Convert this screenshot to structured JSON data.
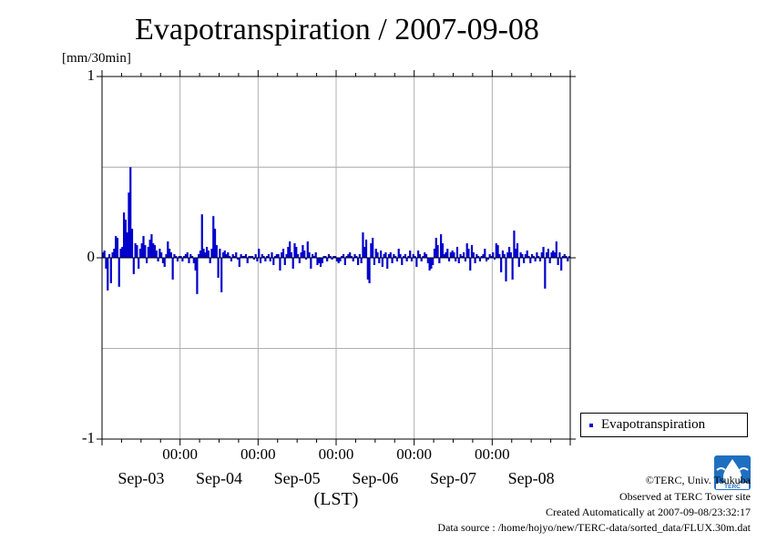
{
  "title": "Evapotranspiration / 2007-09-08",
  "unit_label": "[mm/30min]",
  "legend_label": "Evapotranspiration",
  "credits": {
    "copyright": "©TERC, Univ. Tsukuba",
    "observed": "Observed at TERC Tower site",
    "created": "Created Automatically at 2007-09-08/23:32:17",
    "source": "Data source : /home/hojyo/new/TERC-data/sorted_data/FLUX.30m.dat"
  },
  "logo_text": "TERC",
  "colors": {
    "series": "#0000cc",
    "grid": "#b0b0b0",
    "axis": "#000000"
  },
  "chart_data": {
    "type": "bar",
    "title": "Evapotranspiration / 2007-09-08",
    "ylabel": "[mm/30min]",
    "xlabel": "(LST)",
    "ylim": [
      -1,
      1
    ],
    "yticks": [
      -1,
      0,
      1
    ],
    "ytick_labels": [
      "-1",
      "0",
      "1"
    ],
    "grid": true,
    "legend_position": "bottom-right outside",
    "x_start": "2007-09-03 00:00",
    "x_end": "2007-09-09 00:00",
    "xtick_time_labels": [
      "00:00",
      "00:00",
      "00:00",
      "00:00",
      "00:00"
    ],
    "xtick_times": [
      "2007-09-04 00:00",
      "2007-09-05 00:00",
      "2007-09-06 00:00",
      "2007-09-07 00:00",
      "2007-09-08 00:00"
    ],
    "date_labels": [
      "Sep-03",
      "Sep-04",
      "Sep-05",
      "Sep-06",
      "Sep-07",
      "Sep-08"
    ],
    "series": [
      {
        "name": "Evapotranspiration",
        "interval": "30min",
        "values": [
          0.03,
          0.04,
          -0.06,
          -0.18,
          0.02,
          -0.14,
          0.03,
          0.05,
          0.12,
          0.11,
          -0.16,
          0.05,
          0.06,
          0.25,
          0.21,
          0.14,
          0.36,
          0.5,
          0.16,
          -0.09,
          0.08,
          0.07,
          -0.06,
          0.05,
          0.08,
          0.12,
          0.07,
          -0.03,
          0.06,
          0.1,
          0.13,
          0.08,
          0.07,
          0.04,
          -0.02,
          0.05,
          0.03,
          -0.03,
          -0.05,
          0.02,
          0.09,
          0.05,
          0.03,
          -0.12,
          0.02,
          0.01,
          -0.02,
          0.01,
          0.01,
          -0.02,
          0.01,
          0.02,
          0.03,
          -0.03,
          0.02,
          0.01,
          -0.03,
          -0.07,
          -0.2,
          0.02,
          0.04,
          0.24,
          0.05,
          0.03,
          0.06,
          0.04,
          -0.03,
          0.05,
          0.23,
          0.16,
          0.07,
          -0.11,
          0.05,
          -0.19,
          0.03,
          0.04,
          0.02,
          0.03,
          0.01,
          -0.02,
          0.02,
          0.01,
          0.03,
          -0.01,
          -0.05,
          0.02,
          0.01,
          0.01,
          0.02,
          -0.03,
          0.01,
          0.01,
          0.01,
          -0.01,
          0.02,
          -0.02,
          0.05,
          -0.03,
          0.02,
          0.01,
          -0.02,
          0.01,
          0.02,
          -0.02,
          0.03,
          -0.04,
          0.01,
          0.02,
          0.02,
          -0.07,
          0.03,
          0.05,
          -0.04,
          0.02,
          0.06,
          0.09,
          0.03,
          -0.06,
          0.08,
          0.06,
          0.02,
          -0.03,
          0.03,
          0.07,
          0.04,
          -0.01,
          0.09,
          0.03,
          -0.06,
          0.02,
          0.01,
          0.03,
          -0.04,
          -0.03,
          -0.05,
          -0.03,
          0.01,
          0.01,
          -0.02,
          0.02,
          0.01,
          -0.01,
          0.01,
          0.01,
          -0.02,
          -0.03,
          -0.02,
          0.01,
          0.02,
          -0.04,
          0.01,
          0.02,
          0.03,
          0.01,
          -0.02,
          0.02,
          0.01,
          -0.04,
          0.02,
          -0.03,
          0.14,
          0.06,
          0.1,
          -0.12,
          -0.14,
          0.08,
          0.11,
          -0.04,
          0.05,
          0.03,
          -0.03,
          0.04,
          -0.05,
          0.02,
          0.03,
          -0.06,
          0.02,
          0.03,
          -0.03,
          0.02,
          0.01,
          -0.02,
          0.05,
          0.02,
          -0.04,
          0.01,
          0.02,
          -0.02,
          0.01,
          0.04,
          -0.02,
          0.02,
          0.01,
          -0.05,
          0.04,
          0.02,
          -0.02,
          0.01,
          0.03,
          0.02,
          -0.03,
          -0.07,
          -0.06,
          -0.04,
          0.05,
          0.11,
          0.07,
          -0.03,
          0.13,
          0.08,
          0.02,
          0.03,
          0.05,
          -0.02,
          0.03,
          0.04,
          0.03,
          -0.02,
          0.06,
          -0.03,
          0.02,
          0.01,
          0.03,
          -0.02,
          0.08,
          0.05,
          -0.07,
          0.07,
          0.03,
          -0.03,
          0.02,
          0.01,
          -0.02,
          0.01,
          0.02,
          0.05,
          -0.02,
          -0.01,
          0.02,
          0.01,
          0.03,
          -0.01,
          0.08,
          0.07,
          0.02,
          -0.08,
          0.04,
          0.02,
          -0.13,
          0.03,
          0.06,
          0.03,
          -0.12,
          0.15,
          0.05,
          0.08,
          -0.05,
          0.03,
          0.02,
          -0.03,
          0.02,
          0.04,
          0.01,
          -0.03,
          0.02,
          0.01,
          -0.02,
          0.03,
          0.01,
          -0.02,
          0.03,
          0.06,
          -0.17,
          0.03,
          0.05,
          -0.03,
          0.03,
          0.04,
          0.03,
          0.09,
          -0.04,
          0.03,
          -0.07,
          0.01,
          0.02,
          0.01,
          -0.02,
          0.01
        ]
      }
    ]
  }
}
